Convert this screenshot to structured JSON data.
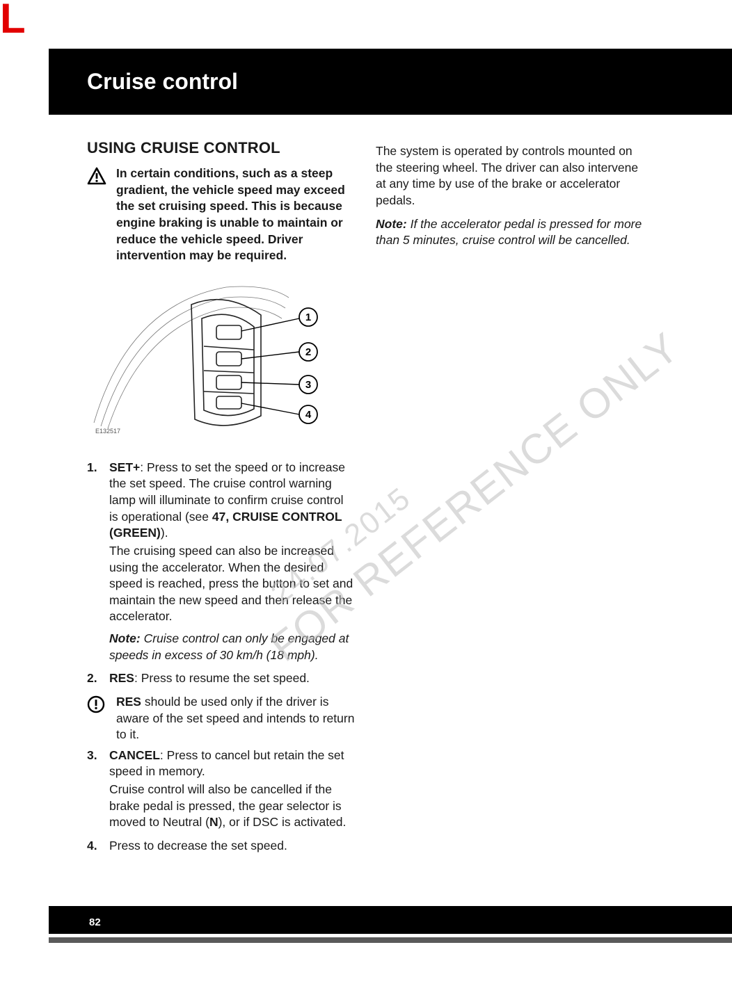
{
  "corner_letter": "L",
  "header_title": "Cruise control",
  "section_heading": "USING CRUISE CONTROL",
  "warning_block": "In certain conditions, such as a steep gradient, the vehicle speed may exceed the set cruising speed. This is because engine braking is unable to maintain or reduce the vehicle speed. Driver intervention may be required.",
  "right_intro": "The system is operated by controls mounted on the steering wheel. The driver can also intervene at any time by use of the brake or accelerator pedals.",
  "right_note_label": "Note:",
  "right_note_body": " If the accelerator pedal is pressed for more than 5 minutes, cruise control will be cancelled.",
  "diagram_code": "E132517",
  "callouts": [
    "1",
    "2",
    "3",
    "4"
  ],
  "items": [
    {
      "num": "1.",
      "lead": "SET+",
      "body1": ": Press to set the speed or to increase the set speed. The cruise control warning lamp will illuminate to confirm cruise control is operational (see ",
      "ref": "47, CRUISE CONTROL (GREEN)",
      "body2": ").",
      "extra": "The cruising speed can also be increased using the accelerator. When the desired speed is reached, press the button to set and maintain the new speed and then release the accelerator.",
      "note_label": "Note:",
      "note_body": " Cruise control can only be engaged at speeds in excess of 30 km/h (18 mph)."
    },
    {
      "num": "2.",
      "lead": "RES",
      "body1": ": Press to resume the set speed."
    }
  ],
  "info_lead": "RES",
  "info_body": " should be used only if the driver is aware of the set speed and intends to return to it.",
  "items2": [
    {
      "num": "3.",
      "lead": "CANCEL",
      "body1": ": Press to cancel but retain the set speed in memory.",
      "extra": "Cruise control will also be cancelled if the brake pedal is pressed, the gear selector is moved to Neutral (",
      "n": "N",
      "extra2": "), or if DSC is activated."
    },
    {
      "num": "4.",
      "body1": "Press to decrease the set speed."
    }
  ],
  "watermark1": "FOR REFERENCE ONLY",
  "watermark2": "24.07.2015",
  "page_number": "82"
}
